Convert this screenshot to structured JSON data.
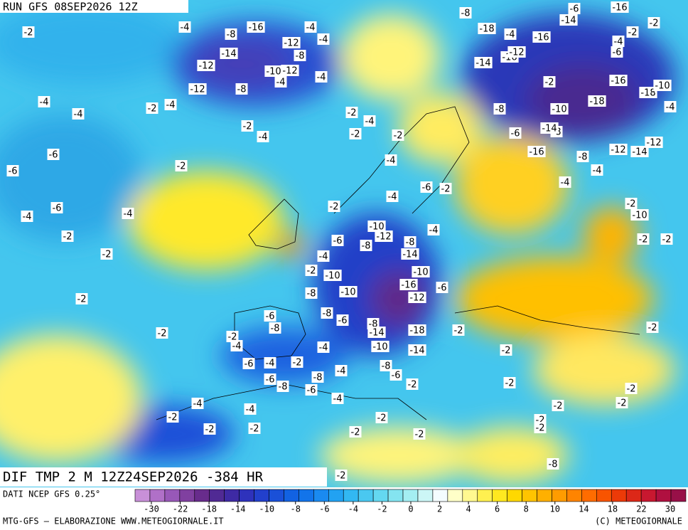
{
  "header": {
    "run": "RUN GFS 08SEP2026 12Z"
  },
  "map": {
    "title": "DIF TMP 2 M 12Z24SEP2026 -384 HR",
    "contour_labels": [
      -2,
      -4,
      -8,
      -16,
      -4,
      -4,
      -12,
      -8,
      -14,
      -12,
      -10,
      -12,
      -4,
      -12,
      -8,
      -4,
      -4,
      -2,
      -4,
      -4,
      -2,
      -4,
      -2,
      -4,
      -2,
      -2,
      -6,
      -6,
      -2,
      -4,
      -6,
      -2,
      -4,
      -2,
      -6,
      -4,
      -4,
      -2,
      -2,
      -10,
      -12,
      -8,
      -6,
      -4,
      -2,
      -10,
      -8,
      -14,
      -4,
      -10,
      -8,
      -10,
      -16,
      -6,
      -2,
      -12,
      -8,
      -6,
      -6,
      -8,
      -8,
      -14,
      -18,
      -2,
      -2,
      -2,
      -4,
      -4,
      -10,
      -14,
      -8,
      -6,
      -4,
      -2,
      -4,
      -6,
      -8,
      -6,
      -8,
      -6,
      -2,
      -4,
      -4,
      -4,
      -2,
      -2,
      -2,
      -2,
      -2,
      -2,
      -2,
      -2,
      -2,
      -2,
      -2,
      -2,
      -2,
      -2,
      -2,
      -2,
      -2,
      -10,
      -4,
      -4,
      -8,
      -12,
      -14,
      -12,
      -8,
      -14,
      -16,
      -6,
      -8,
      -10,
      -18,
      -16,
      -18,
      -10,
      -4,
      -2,
      -16,
      -12,
      -14,
      -4,
      -16,
      -18,
      -8,
      -6,
      -14,
      -16,
      -2,
      -2,
      -4,
      -6,
      -8,
      -2,
      -2
    ]
  },
  "footer": {
    "source": "DATI NCEP GFS 0.25°",
    "colorbar": {
      "colors": [
        "#c890d8",
        "#b070c8",
        "#9858b8",
        "#8040a0",
        "#682c8c",
        "#502a94",
        "#3e2aa4",
        "#2e32bc",
        "#2240cc",
        "#1a50d8",
        "#1262e2",
        "#1274ea",
        "#1a8af0",
        "#22a2f2",
        "#32b8f2",
        "#4ac8f0",
        "#64d8f0",
        "#84e4f0",
        "#a4eef2",
        "#ccf6f6",
        "#f4fcff",
        "#ffffc8",
        "#fff890",
        "#fff050",
        "#ffe820",
        "#ffd800",
        "#ffc400",
        "#ffb000",
        "#ff9c00",
        "#ff8400",
        "#ff6c00",
        "#f85400",
        "#ec3a08",
        "#dc2818",
        "#c81830",
        "#b01040",
        "#981048"
      ],
      "ticks": [
        -30,
        -22,
        -18,
        -14,
        -10,
        -8,
        -6,
        -4,
        -2,
        0,
        2,
        4,
        6,
        8,
        10,
        14,
        18,
        22,
        30
      ]
    },
    "credit_left": "MTG-GFS – ELABORAZIONE WWW.METEOGIORNALE.IT",
    "credit_right": "(C) METEOGIORNALE"
  }
}
